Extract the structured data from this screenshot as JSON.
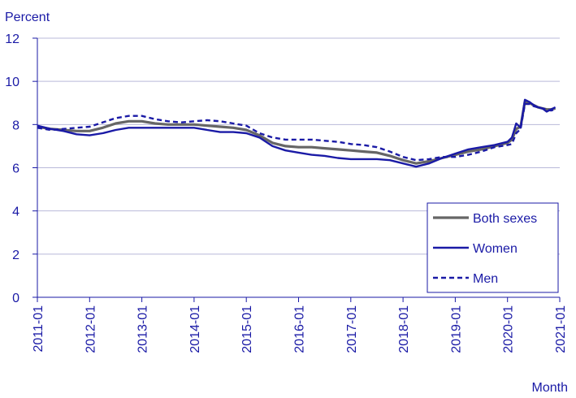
{
  "chart_data": {
    "type": "line",
    "ylabel": "Percent",
    "xlabel": "Month",
    "ylim": [
      0,
      12
    ],
    "yticks": [
      "0",
      "2",
      "4",
      "6",
      "8",
      "10",
      "12"
    ],
    "xticks": [
      "2011-01",
      "2012-01",
      "2013-01",
      "2014-01",
      "2015-01",
      "2016-01",
      "2017-01",
      "2018-01",
      "2019-01",
      "2020-01",
      "2021-01"
    ],
    "grid": "horizontal",
    "legend_position": "bottom-right",
    "series": [
      {
        "name": "Both sexes",
        "color": "#666666",
        "style": "solid",
        "points": [
          [
            "2011-01",
            7.9
          ],
          [
            "2011-04",
            7.8
          ],
          [
            "2011-07",
            7.75
          ],
          [
            "2011-10",
            7.7
          ],
          [
            "2012-01",
            7.7
          ],
          [
            "2012-04",
            7.85
          ],
          [
            "2012-07",
            8.05
          ],
          [
            "2012-10",
            8.15
          ],
          [
            "2013-01",
            8.15
          ],
          [
            "2013-04",
            8.05
          ],
          [
            "2013-07",
            8.0
          ],
          [
            "2013-10",
            8.0
          ],
          [
            "2014-01",
            8.0
          ],
          [
            "2014-04",
            7.95
          ],
          [
            "2014-07",
            7.9
          ],
          [
            "2014-10",
            7.85
          ],
          [
            "2015-01",
            7.75
          ],
          [
            "2015-04",
            7.5
          ],
          [
            "2015-07",
            7.15
          ],
          [
            "2015-10",
            7.0
          ],
          [
            "2016-01",
            6.95
          ],
          [
            "2016-04",
            6.95
          ],
          [
            "2016-07",
            6.9
          ],
          [
            "2016-10",
            6.85
          ],
          [
            "2017-01",
            6.8
          ],
          [
            "2017-04",
            6.75
          ],
          [
            "2017-07",
            6.7
          ],
          [
            "2017-10",
            6.55
          ],
          [
            "2018-01",
            6.35
          ],
          [
            "2018-04",
            6.2
          ],
          [
            "2018-07",
            6.3
          ],
          [
            "2018-10",
            6.45
          ],
          [
            "2019-01",
            6.6
          ],
          [
            "2019-04",
            6.75
          ],
          [
            "2019-07",
            6.85
          ],
          [
            "2019-10",
            7.0
          ],
          [
            "2020-01",
            7.15
          ],
          [
            "2020-02",
            7.3
          ],
          [
            "2020-03",
            7.8
          ],
          [
            "2020-04",
            7.9
          ],
          [
            "2020-05",
            9.05
          ],
          [
            "2020-06",
            9.0
          ],
          [
            "2020-07",
            8.9
          ],
          [
            "2020-08",
            8.8
          ],
          [
            "2020-09",
            8.75
          ],
          [
            "2020-10",
            8.7
          ],
          [
            "2020-11",
            8.7
          ],
          [
            "2020-12",
            8.75
          ]
        ]
      },
      {
        "name": "Women",
        "color": "#1a1aa6",
        "style": "solid",
        "points": [
          [
            "2011-01",
            7.95
          ],
          [
            "2011-04",
            7.8
          ],
          [
            "2011-07",
            7.7
          ],
          [
            "2011-10",
            7.55
          ],
          [
            "2012-01",
            7.5
          ],
          [
            "2012-04",
            7.6
          ],
          [
            "2012-07",
            7.75
          ],
          [
            "2012-10",
            7.85
          ],
          [
            "2013-01",
            7.85
          ],
          [
            "2013-04",
            7.85
          ],
          [
            "2013-07",
            7.85
          ],
          [
            "2013-10",
            7.85
          ],
          [
            "2014-01",
            7.85
          ],
          [
            "2014-04",
            7.75
          ],
          [
            "2014-07",
            7.65
          ],
          [
            "2014-10",
            7.65
          ],
          [
            "2015-01",
            7.6
          ],
          [
            "2015-04",
            7.4
          ],
          [
            "2015-07",
            7.0
          ],
          [
            "2015-10",
            6.8
          ],
          [
            "2016-01",
            6.7
          ],
          [
            "2016-04",
            6.6
          ],
          [
            "2016-07",
            6.55
          ],
          [
            "2016-10",
            6.45
          ],
          [
            "2017-01",
            6.4
          ],
          [
            "2017-04",
            6.4
          ],
          [
            "2017-07",
            6.4
          ],
          [
            "2017-10",
            6.35
          ],
          [
            "2018-01",
            6.2
          ],
          [
            "2018-04",
            6.05
          ],
          [
            "2018-07",
            6.2
          ],
          [
            "2018-10",
            6.45
          ],
          [
            "2019-01",
            6.65
          ],
          [
            "2019-04",
            6.85
          ],
          [
            "2019-07",
            6.95
          ],
          [
            "2019-10",
            7.05
          ],
          [
            "2020-01",
            7.2
          ],
          [
            "2020-02",
            7.4
          ],
          [
            "2020-03",
            8.05
          ],
          [
            "2020-04",
            7.85
          ],
          [
            "2020-05",
            9.15
          ],
          [
            "2020-06",
            9.05
          ],
          [
            "2020-07",
            8.9
          ],
          [
            "2020-08",
            8.8
          ],
          [
            "2020-09",
            8.75
          ],
          [
            "2020-10",
            8.6
          ],
          [
            "2020-11",
            8.7
          ],
          [
            "2020-12",
            8.8
          ]
        ]
      },
      {
        "name": "Men",
        "color": "#1a1aa6",
        "style": "dashed",
        "points": [
          [
            "2011-01",
            7.85
          ],
          [
            "2011-04",
            7.75
          ],
          [
            "2011-07",
            7.8
          ],
          [
            "2011-10",
            7.85
          ],
          [
            "2012-01",
            7.9
          ],
          [
            "2012-04",
            8.1
          ],
          [
            "2012-07",
            8.3
          ],
          [
            "2012-10",
            8.4
          ],
          [
            "2013-01",
            8.4
          ],
          [
            "2013-04",
            8.25
          ],
          [
            "2013-07",
            8.15
          ],
          [
            "2013-10",
            8.1
          ],
          [
            "2014-01",
            8.15
          ],
          [
            "2014-04",
            8.2
          ],
          [
            "2014-07",
            8.15
          ],
          [
            "2014-10",
            8.05
          ],
          [
            "2015-01",
            7.95
          ],
          [
            "2015-04",
            7.6
          ],
          [
            "2015-07",
            7.4
          ],
          [
            "2015-10",
            7.3
          ],
          [
            "2016-01",
            7.3
          ],
          [
            "2016-04",
            7.3
          ],
          [
            "2016-07",
            7.25
          ],
          [
            "2016-10",
            7.2
          ],
          [
            "2017-01",
            7.1
          ],
          [
            "2017-04",
            7.05
          ],
          [
            "2017-07",
            6.95
          ],
          [
            "2017-10",
            6.75
          ],
          [
            "2018-01",
            6.5
          ],
          [
            "2018-04",
            6.35
          ],
          [
            "2018-07",
            6.4
          ],
          [
            "2018-10",
            6.5
          ],
          [
            "2019-01",
            6.5
          ],
          [
            "2019-04",
            6.6
          ],
          [
            "2019-07",
            6.75
          ],
          [
            "2019-10",
            6.95
          ],
          [
            "2020-01",
            7.05
          ],
          [
            "2020-02",
            7.1
          ],
          [
            "2020-03",
            7.6
          ],
          [
            "2020-04",
            7.8
          ],
          [
            "2020-05",
            8.95
          ],
          [
            "2020-06",
            8.95
          ],
          [
            "2020-07",
            8.85
          ],
          [
            "2020-08",
            8.8
          ],
          [
            "2020-09",
            8.75
          ],
          [
            "2020-10",
            8.7
          ],
          [
            "2020-11",
            8.65
          ],
          [
            "2020-12",
            8.7
          ]
        ]
      }
    ]
  }
}
